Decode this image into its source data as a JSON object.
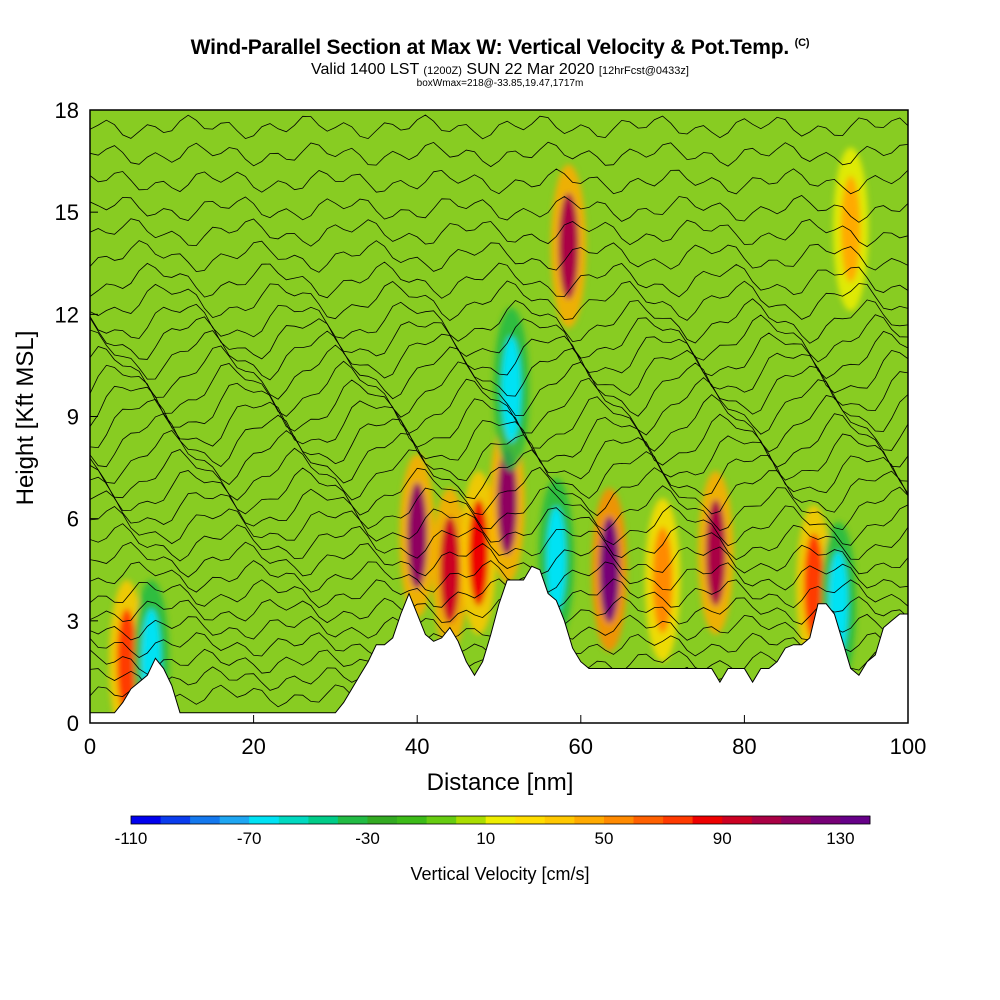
{
  "chart_data": {
    "type": "heatmap",
    "title": "Wind-Parallel Section at Max W: Vertical Velocity & Pot.Temp.",
    "title_mark": "(C)",
    "subtitle_a": "Valid 1400 LST",
    "subtitle_b": "(1200Z)",
    "subtitle_c": "SUN 22 Mar 2020",
    "subtitle_d": "[12hrFcst@0433z]",
    "subtitle2": "boxWmax=218@-33.85,19.47,1717m",
    "xlabel": "Distance [nm]",
    "ylabel": "Height [Kft MSL]",
    "xlim": [
      0,
      100
    ],
    "ylim": [
      0,
      18
    ],
    "xticks": [
      0,
      20,
      40,
      60,
      80,
      100
    ],
    "yticks": [
      0,
      3,
      6,
      9,
      12,
      15,
      18
    ],
    "colorbar": {
      "label": "Vertical Velocity [cm/s]",
      "min": -110,
      "max": 140,
      "step": 10,
      "tick_labels": [
        -110,
        -70,
        -30,
        10,
        50,
        90,
        130
      ],
      "colors": [
        "#0000ee",
        "#0a3cee",
        "#1478ee",
        "#1ea6f2",
        "#00e2f4",
        "#00d9c0",
        "#00cc88",
        "#22bb44",
        "#33aa22",
        "#3cbb18",
        "#66cc11",
        "#aadd00",
        "#eeee00",
        "#ffdd00",
        "#ffc800",
        "#ffaa00",
        "#ff8a00",
        "#ff6000",
        "#ff3a00",
        "#ee0000",
        "#cc0022",
        "#aa0044",
        "#8f0060",
        "#770077",
        "#660088"
      ]
    },
    "terrain_profile": {
      "x": [
        0,
        3,
        4,
        5,
        6,
        7,
        8,
        9,
        10,
        11,
        12,
        20,
        30,
        31,
        32,
        33,
        34,
        35,
        36,
        37,
        38,
        39,
        40,
        41,
        42,
        43,
        44,
        45,
        46,
        47,
        48,
        49,
        50,
        51,
        52,
        53,
        54,
        55,
        56,
        57,
        58,
        59,
        60,
        61,
        62,
        63,
        64,
        65,
        66,
        67,
        68,
        69,
        70,
        71,
        72,
        73,
        74,
        75,
        76,
        77,
        78,
        79,
        80,
        81,
        82,
        83,
        84,
        85,
        86,
        87,
        88,
        89,
        90,
        91,
        92,
        93,
        94,
        95,
        96,
        97,
        98,
        99,
        100
      ],
      "height": [
        0.3,
        0.3,
        0.6,
        1.0,
        1.2,
        1.4,
        1.9,
        1.6,
        1.1,
        0.3,
        0.3,
        0.3,
        0.3,
        0.6,
        1.0,
        1.4,
        1.8,
        2.3,
        2.3,
        2.5,
        3.2,
        3.8,
        3.2,
        2.6,
        2.4,
        2.5,
        2.8,
        2.4,
        1.8,
        1.4,
        1.8,
        2.6,
        3.5,
        4.2,
        4.2,
        4.2,
        4.6,
        4.5,
        3.8,
        3.6,
        3.0,
        2.2,
        1.8,
        1.6,
        1.6,
        1.6,
        1.6,
        1.6,
        1.6,
        1.6,
        1.6,
        1.6,
        1.6,
        1.6,
        1.6,
        1.6,
        1.6,
        1.6,
        1.6,
        1.2,
        1.6,
        1.6,
        1.6,
        1.2,
        1.6,
        1.6,
        1.8,
        2.2,
        2.3,
        2.3,
        2.5,
        3.5,
        3.5,
        3.2,
        2.4,
        1.6,
        1.4,
        1.8,
        2.0,
        2.8,
        3.0,
        3.2,
        3.2
      ]
    },
    "w_cells": [
      {
        "x": 4.5,
        "z": 1.8,
        "w": 70
      },
      {
        "x": 7.5,
        "z": 1.8,
        "w": -70
      },
      {
        "x": 40.0,
        "z": 5.5,
        "w": 110
      },
      {
        "x": 44.0,
        "z": 4.5,
        "w": 90
      },
      {
        "x": 47.5,
        "z": 5.0,
        "w": 80
      },
      {
        "x": 51.0,
        "z": 6.5,
        "w": 110
      },
      {
        "x": 51.5,
        "z": 9.8,
        "w": -70
      },
      {
        "x": 58.5,
        "z": 14.0,
        "w": 100
      },
      {
        "x": 57.0,
        "z": 4.8,
        "w": -70
      },
      {
        "x": 63.5,
        "z": 4.5,
        "w": 120
      },
      {
        "x": 70.0,
        "z": 4.2,
        "w": 50
      },
      {
        "x": 76.5,
        "z": 5.0,
        "w": 100
      },
      {
        "x": 88.5,
        "z": 4.0,
        "w": 70
      },
      {
        "x": 91.5,
        "z": 3.5,
        "w": -70
      },
      {
        "x": 93.0,
        "z": 14.5,
        "w": 40
      }
    ],
    "theta_contours": {
      "z_levels": [
        0.8,
        1.3,
        1.8,
        2.3,
        2.8,
        3.3,
        3.8,
        4.3,
        4.8,
        5.3,
        5.8,
        6.3,
        6.8,
        7.3,
        7.8,
        8.3,
        8.8,
        9.3,
        9.8,
        10.3,
        10.8,
        11.3,
        11.8,
        12.4,
        13.0,
        13.7,
        14.4,
        15.1,
        15.9,
        16.7,
        17.5
      ]
    }
  }
}
